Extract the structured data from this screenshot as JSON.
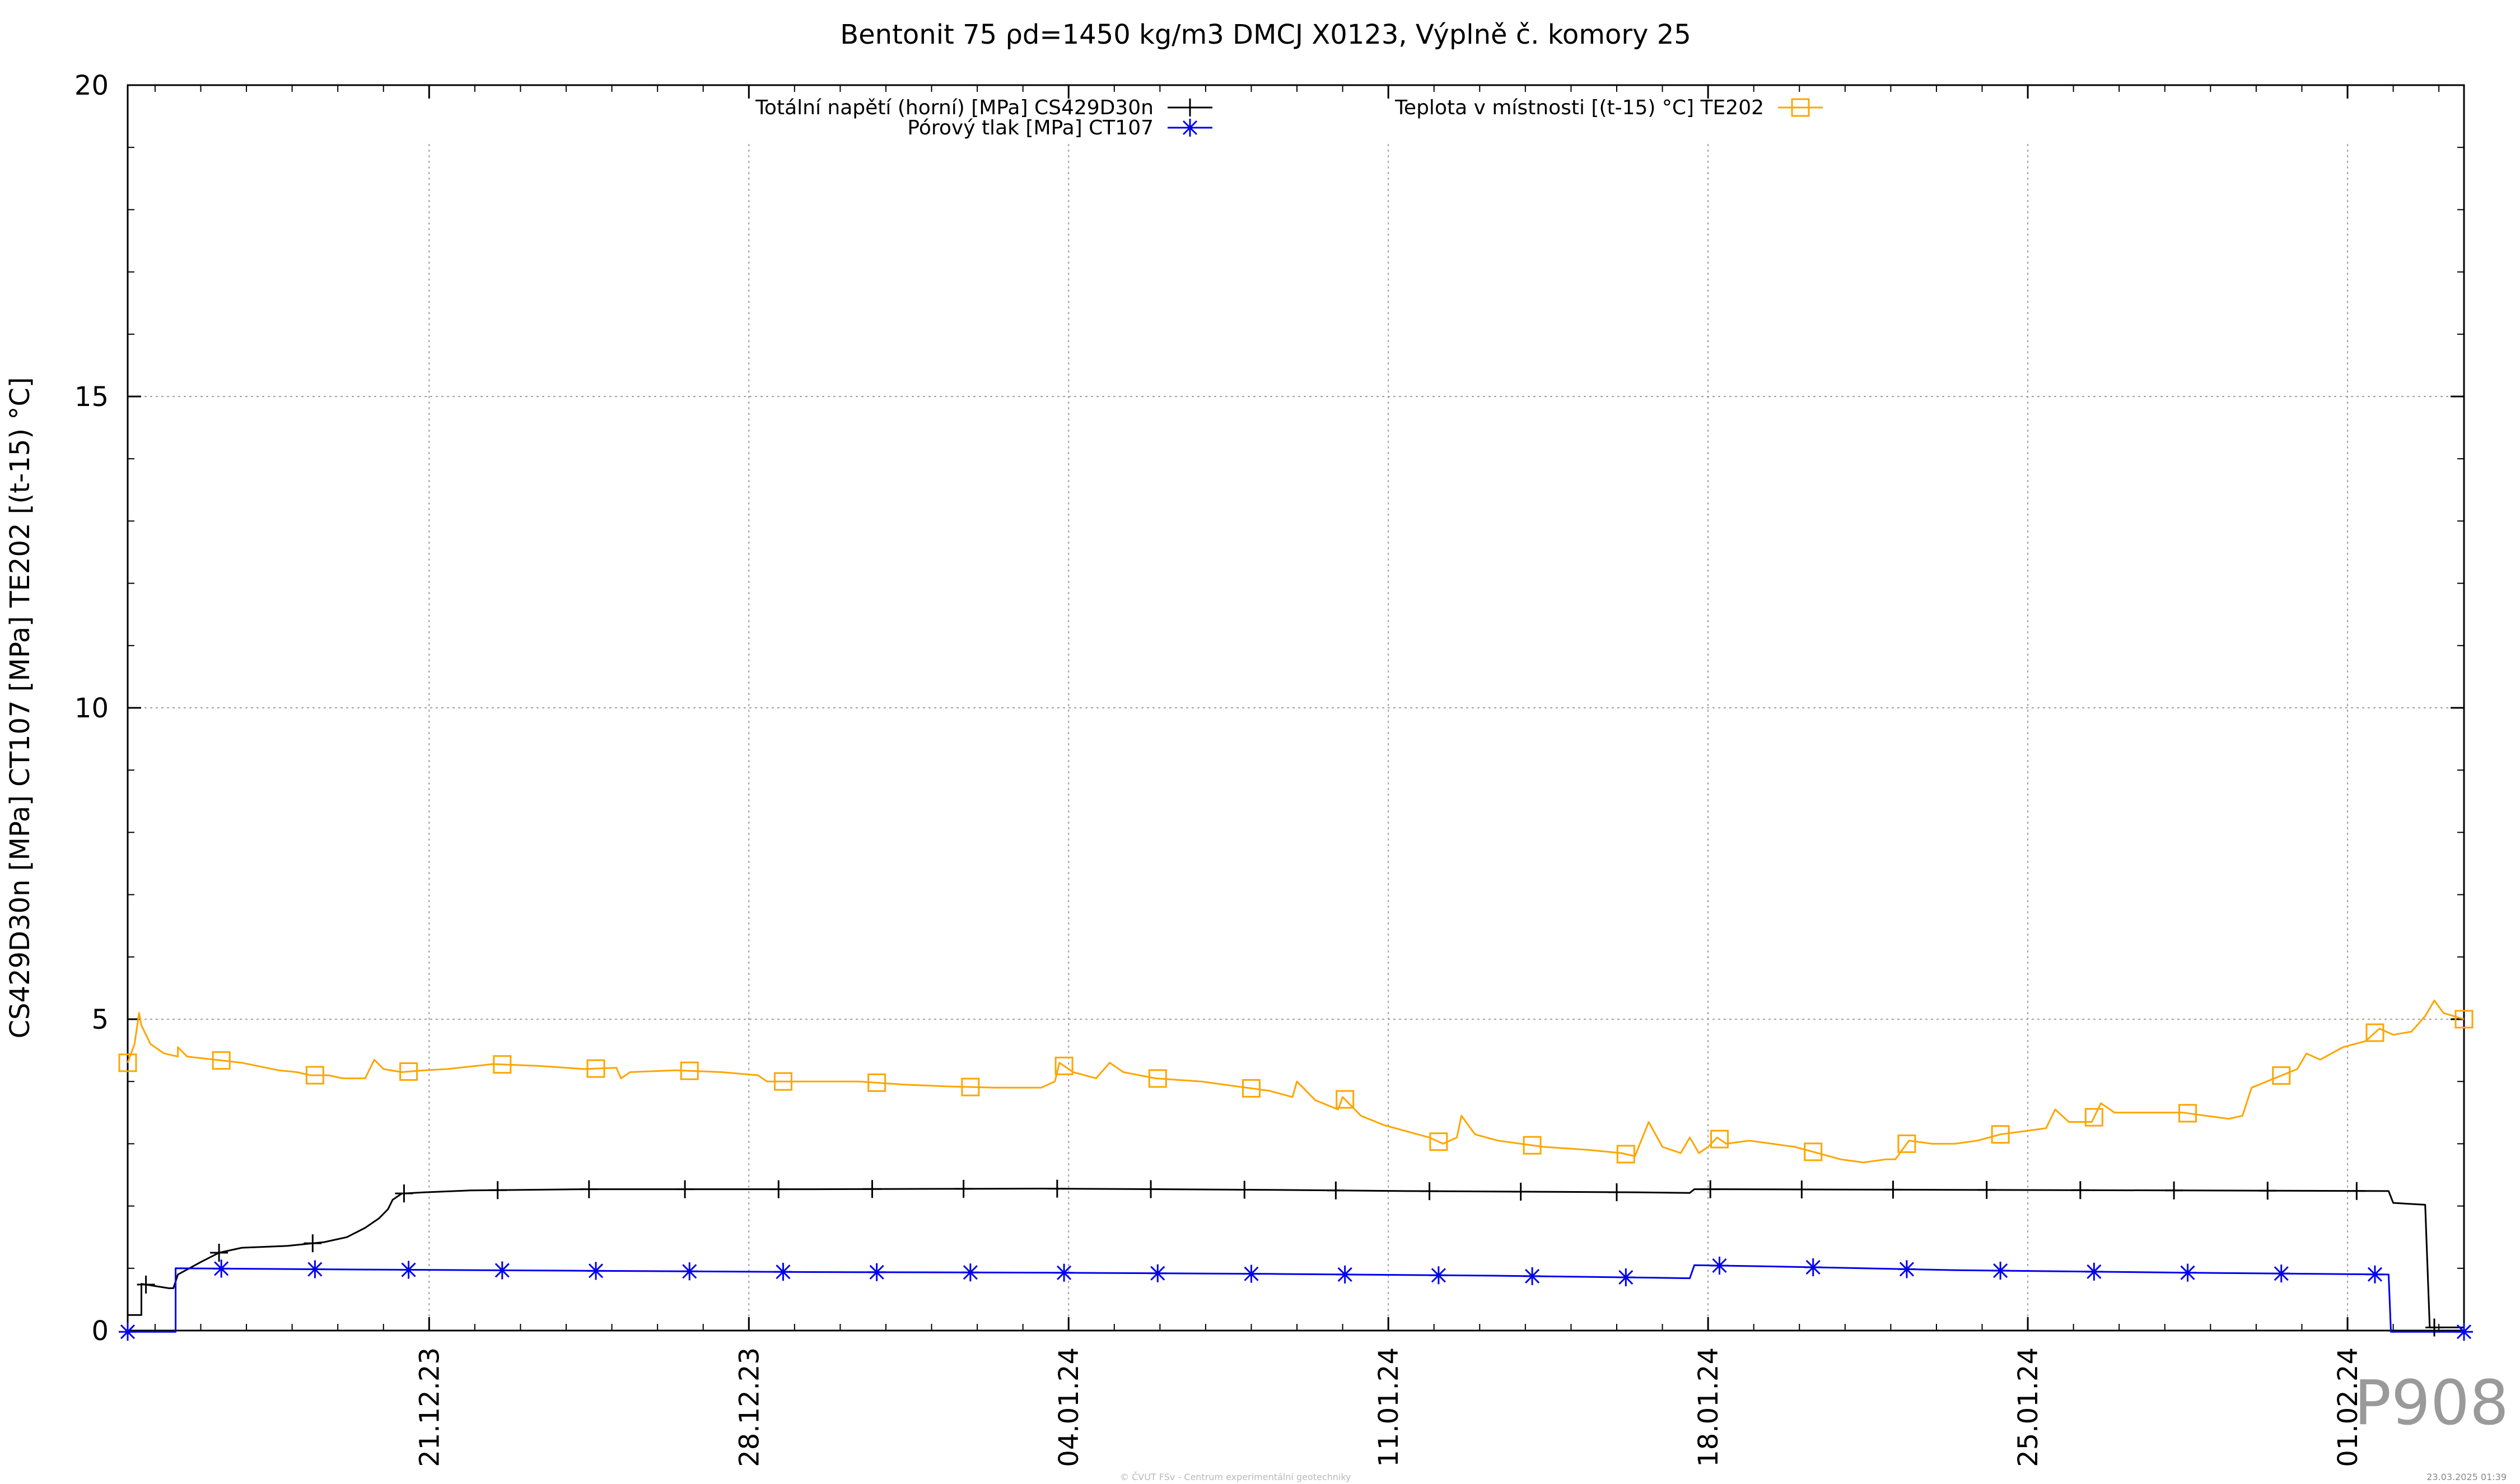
{
  "chart_data": {
    "type": "line",
    "title": "Bentonit 75 ρd=1450 kg/m3 DMCJ X0123, Výplně č. komory 25",
    "xlabel": "",
    "ylabel": "CS429D30n [MPa] CT107 [MPa] TE202 [(t-15) °C]",
    "ylim": [
      0,
      20
    ],
    "yticks": [
      0,
      5,
      10,
      15,
      20
    ],
    "x_unit": "days since 2023-12-14",
    "xlim": [
      0,
      51.15
    ],
    "xticks": [
      {
        "x": 6.6,
        "label": "21.12.23"
      },
      {
        "x": 13.6,
        "label": "28.12.23"
      },
      {
        "x": 20.6,
        "label": "04.01.24"
      },
      {
        "x": 27.6,
        "label": "11.01.24"
      },
      {
        "x": 34.6,
        "label": "18.01.24"
      },
      {
        "x": 41.6,
        "label": "25.01.24"
      },
      {
        "x": 48.6,
        "label": "01.02.24"
      }
    ],
    "grid": true,
    "legend_position": "top",
    "series": [
      {
        "name": "Totální napětí (horní) [MPa] CS429D30n",
        "color": "#000000",
        "marker": "plus",
        "points": [
          [
            0,
            0.25
          ],
          [
            0.3,
            0.25
          ],
          [
            0.3,
            0.75
          ],
          [
            0.9,
            0.68
          ],
          [
            1.0,
            0.68
          ],
          [
            1.1,
            0.9
          ],
          [
            1.6,
            1.1
          ],
          [
            2.0,
            1.25
          ],
          [
            2.5,
            1.33
          ],
          [
            3.5,
            1.36
          ],
          [
            4.3,
            1.42
          ],
          [
            4.8,
            1.5
          ],
          [
            5.2,
            1.65
          ],
          [
            5.5,
            1.8
          ],
          [
            5.7,
            1.95
          ],
          [
            5.8,
            2.1
          ],
          [
            6.0,
            2.2
          ],
          [
            6.5,
            2.22
          ],
          [
            7.5,
            2.25
          ],
          [
            10,
            2.27
          ],
          [
            15,
            2.27
          ],
          [
            20,
            2.28
          ],
          [
            25,
            2.26
          ],
          [
            28,
            2.24
          ],
          [
            33,
            2.22
          ],
          [
            34.2,
            2.21
          ],
          [
            34.3,
            2.27
          ],
          [
            35,
            2.27
          ],
          [
            40,
            2.26
          ],
          [
            45,
            2.25
          ],
          [
            49.5,
            2.24
          ],
          [
            49.6,
            2.05
          ],
          [
            50.3,
            2.02
          ],
          [
            50.4,
            0.05
          ],
          [
            51.15,
            0.05
          ]
        ],
        "markers_x": [
          0.4,
          2.0,
          4.05,
          6.05,
          8.1,
          10.1,
          12.2,
          14.25,
          16.3,
          18.3,
          20.35,
          22.4,
          24.45,
          26.45,
          28.5,
          30.5,
          32.6,
          34.65,
          36.65,
          38.65,
          40.7,
          42.75,
          44.8,
          46.85,
          48.8,
          50.5
        ]
      },
      {
        "name": "Pórový tlak [MPa] CT107",
        "color": "#0000ee",
        "marker": "asterisk",
        "points": [
          [
            0,
            -0.02
          ],
          [
            1.05,
            -0.02
          ],
          [
            1.05,
            1.0
          ],
          [
            5,
            0.98
          ],
          [
            10,
            0.96
          ],
          [
            15,
            0.94
          ],
          [
            20,
            0.93
          ],
          [
            25,
            0.91
          ],
          [
            30,
            0.88
          ],
          [
            33.3,
            0.85
          ],
          [
            34.2,
            0.84
          ],
          [
            34.3,
            1.05
          ],
          [
            36,
            1.03
          ],
          [
            40,
            0.97
          ],
          [
            45,
            0.93
          ],
          [
            49.5,
            0.9
          ],
          [
            49.55,
            -0.02
          ],
          [
            51.15,
            -0.02
          ]
        ],
        "markers_x": [
          0,
          2.05,
          4.1,
          6.15,
          8.2,
          10.25,
          12.3,
          14.35,
          16.4,
          18.45,
          20.5,
          22.55,
          24.6,
          26.65,
          28.7,
          30.75,
          32.8,
          34.85,
          36.9,
          38.95,
          41.0,
          43.05,
          45.1,
          47.15,
          49.2,
          51.15
        ]
      },
      {
        "name": "Teplota v místnosti [(t-15) °C] TE202",
        "color": "#ffa500",
        "marker": "square",
        "points": [
          [
            0,
            4.3
          ],
          [
            0.15,
            4.6
          ],
          [
            0.25,
            5.1
          ],
          [
            0.3,
            4.9
          ],
          [
            0.5,
            4.6
          ],
          [
            0.8,
            4.45
          ],
          [
            1.1,
            4.4
          ],
          [
            1.1,
            4.55
          ],
          [
            1.3,
            4.4
          ],
          [
            2.5,
            4.3
          ],
          [
            3.3,
            4.18
          ],
          [
            3.7,
            4.15
          ],
          [
            4.0,
            4.1
          ],
          [
            4.4,
            4.1
          ],
          [
            4.7,
            4.05
          ],
          [
            5.2,
            4.05
          ],
          [
            5.4,
            4.35
          ],
          [
            5.6,
            4.2
          ],
          [
            6.0,
            4.15
          ],
          [
            6.5,
            4.18
          ],
          [
            7.0,
            4.2
          ],
          [
            8.0,
            4.28
          ],
          [
            9.0,
            4.25
          ],
          [
            10.0,
            4.2
          ],
          [
            10.7,
            4.22
          ],
          [
            10.8,
            4.05
          ],
          [
            11.0,
            4.15
          ],
          [
            12.0,
            4.18
          ],
          [
            13.0,
            4.15
          ],
          [
            13.8,
            4.1
          ],
          [
            14.0,
            4.0
          ],
          [
            15.0,
            4.0
          ],
          [
            16.0,
            4.0
          ],
          [
            17.0,
            3.95
          ],
          [
            18.0,
            3.92
          ],
          [
            19.0,
            3.9
          ],
          [
            20.0,
            3.9
          ],
          [
            20.3,
            4.0
          ],
          [
            20.4,
            4.3
          ],
          [
            20.7,
            4.15
          ],
          [
            21.2,
            4.05
          ],
          [
            21.5,
            4.3
          ],
          [
            21.8,
            4.15
          ],
          [
            22.5,
            4.05
          ],
          [
            23.5,
            4.0
          ],
          [
            24.0,
            3.95
          ],
          [
            25.0,
            3.85
          ],
          [
            25.5,
            3.75
          ],
          [
            25.6,
            4.0
          ],
          [
            26.0,
            3.7
          ],
          [
            26.5,
            3.55
          ],
          [
            26.6,
            3.75
          ],
          [
            27.0,
            3.45
          ],
          [
            27.5,
            3.3
          ],
          [
            28.0,
            3.2
          ],
          [
            28.5,
            3.1
          ],
          [
            28.8,
            3.0
          ],
          [
            29.1,
            3.1
          ],
          [
            29.2,
            3.45
          ],
          [
            29.5,
            3.15
          ],
          [
            30.0,
            3.05
          ],
          [
            31.0,
            2.95
          ],
          [
            32.0,
            2.9
          ],
          [
            32.7,
            2.85
          ],
          [
            33.0,
            2.8
          ],
          [
            33.3,
            3.35
          ],
          [
            33.6,
            2.95
          ],
          [
            34.0,
            2.85
          ],
          [
            34.2,
            3.1
          ],
          [
            34.4,
            2.85
          ],
          [
            34.6,
            2.95
          ],
          [
            34.8,
            3.1
          ],
          [
            35.0,
            3.0
          ],
          [
            35.5,
            3.05
          ],
          [
            36.0,
            3.0
          ],
          [
            36.5,
            2.95
          ],
          [
            37.0,
            2.85
          ],
          [
            37.5,
            2.75
          ],
          [
            38.0,
            2.7
          ],
          [
            38.5,
            2.75
          ],
          [
            38.7,
            2.75
          ],
          [
            39.0,
            3.05
          ],
          [
            39.5,
            3.0
          ],
          [
            40.0,
            3.0
          ],
          [
            40.5,
            3.05
          ],
          [
            41.0,
            3.15
          ],
          [
            41.5,
            3.2
          ],
          [
            42.0,
            3.25
          ],
          [
            42.2,
            3.55
          ],
          [
            42.5,
            3.35
          ],
          [
            43.0,
            3.35
          ],
          [
            43.2,
            3.65
          ],
          [
            43.5,
            3.5
          ],
          [
            44.0,
            3.5
          ],
          [
            45.0,
            3.5
          ],
          [
            45.5,
            3.45
          ],
          [
            46.0,
            3.4
          ],
          [
            46.3,
            3.45
          ],
          [
            46.5,
            3.9
          ],
          [
            47.0,
            4.05
          ],
          [
            47.5,
            4.2
          ],
          [
            47.7,
            4.45
          ],
          [
            48.0,
            4.35
          ],
          [
            48.5,
            4.55
          ],
          [
            49.0,
            4.65
          ],
          [
            49.3,
            4.85
          ],
          [
            49.6,
            4.75
          ],
          [
            50.0,
            4.8
          ],
          [
            50.3,
            5.05
          ],
          [
            50.5,
            5.3
          ],
          [
            50.7,
            5.1
          ],
          [
            51.15,
            5.0
          ]
        ],
        "markers_x": [
          0,
          2.05,
          4.1,
          6.15,
          8.2,
          10.25,
          12.3,
          14.35,
          16.4,
          18.45,
          20.5,
          22.55,
          24.6,
          26.65,
          28.7,
          30.75,
          32.8,
          34.85,
          36.9,
          38.95,
          41.0,
          43.05,
          45.1,
          47.15,
          49.2,
          51.15
        ]
      }
    ]
  },
  "plot_id": "P908",
  "footer_left": "© ČVUT FSv - Centrum experimentální geotechniky",
  "footer_right": "23.03.2025 01:39"
}
